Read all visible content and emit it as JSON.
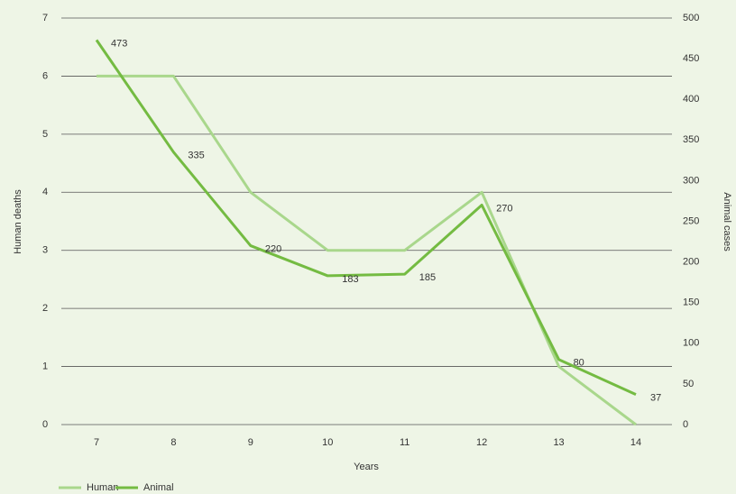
{
  "chart_data": {
    "type": "line",
    "categories": [
      "7",
      "8",
      "9",
      "10",
      "11",
      "12",
      "13",
      "14"
    ],
    "x_label": "Years",
    "y_label": "Human deaths",
    "y2_label": "Animal cases",
    "ylim": [
      0,
      7
    ],
    "yticks": [
      0,
      1,
      2,
      3,
      4,
      5,
      6,
      7
    ],
    "y2lim": [
      0,
      500
    ],
    "y2ticks": [
      0,
      50,
      100,
      150,
      200,
      250,
      300,
      350,
      400,
      450,
      500
    ],
    "grid": true,
    "legend": "bottom-left",
    "series": [
      {
        "name": "Human",
        "color": "#a9d78c",
        "values": [
          6,
          6,
          4,
          3,
          3,
          4,
          1,
          0
        ],
        "data_labels": false
      },
      {
        "name": "Animal",
        "color": "#74bb42",
        "axis": "y2",
        "values": [
          473,
          335,
          220,
          183,
          185,
          270,
          80,
          37
        ],
        "data_labels": true
      }
    ]
  }
}
